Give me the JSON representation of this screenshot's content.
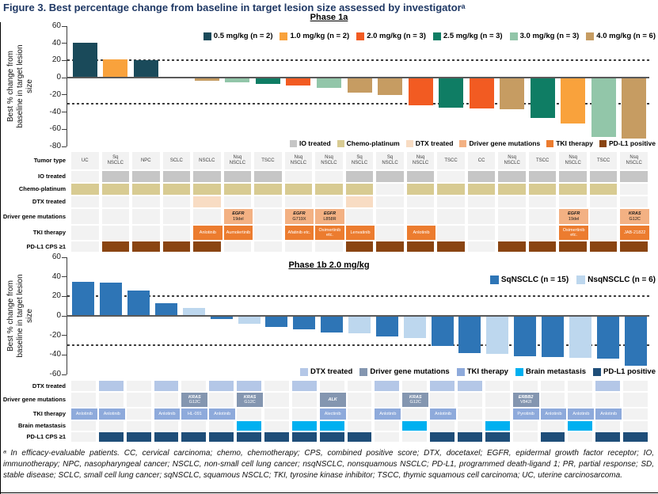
{
  "figure": {
    "title": "Figure 3. Best percentage change from baseline in target lesion size assessed by investigatorᵃ",
    "title_color": "#1f3864",
    "ylabel": "Best % change from\nbaseline in target lesion\nsize",
    "footnote": "ᵃ In efficacy-evaluable patients. CC, cervical carcinoma; chemo, chemotherapy; CPS, combined positive score; DTX, docetaxel; EGFR, epidermal growth factor receptor; IO, immunotherapy; NPC, nasopharyngeal cancer; NSCLC, non-small cell lung cancer; nsqNSCLC, nonsquamous NSCLC; PD-L1, programmed death-ligand 1; PR, partial response; SD, stable disease; SCLC, small cell lung cancer; sqNSCLC, squamous NSCLC; TKI, tyrosine kinase inhibitor; TSCC, thymic squamous cell carcinoma; UC, uterine carcinosarcoma."
  },
  "chart_data": [
    {
      "id": "phase-1a",
      "type": "bar",
      "title": "Phase 1a",
      "ylabel": "Best % change from baseline in target lesion size",
      "ylim": [
        -80,
        60
      ],
      "yticks": [
        60,
        40,
        20,
        0,
        -20,
        -40,
        -60,
        -80
      ],
      "ref_lines": [
        20,
        -30
      ],
      "grid": false,
      "legend_position": "top-inside",
      "series_legend": [
        {
          "key": "0.5",
          "label": "0.5 mg/kg (n = 2)",
          "color": "#1a4a5a"
        },
        {
          "key": "1.0",
          "label": "1.0 mg/kg (n = 2)",
          "color": "#f9a23c"
        },
        {
          "key": "2.0",
          "label": "2.0 mg/kg (n = 3)",
          "color": "#f25b22"
        },
        {
          "key": "2.5",
          "label": "2.5 mg/kg (n = 3)",
          "color": "#0f7d64"
        },
        {
          "key": "3.0",
          "label": "3.0 mg/kg (n = 3)",
          "color": "#92c6a9"
        },
        {
          "key": "4.0",
          "label": "4.0 mg/kg (n = 6)",
          "color": "#c69c62"
        }
      ],
      "values": [
        41,
        21,
        20,
        0,
        -4,
        -5,
        -7,
        -9,
        -12,
        -17,
        -20,
        -32,
        -35,
        -36,
        -37,
        -47,
        -53,
        -69,
        -71
      ],
      "series_key": [
        "0.5",
        "1.0",
        "0.5",
        "4.0",
        "4.0",
        "3.0",
        "2.5",
        "2.0",
        "3.0",
        "4.0",
        "4.0",
        "2.0",
        "2.5",
        "2.0",
        "4.0",
        "2.5",
        "1.0",
        "3.0",
        "4.0"
      ],
      "annotation_grid": {
        "n_cols": 19,
        "row_labels": [
          "Tumor type",
          "IO treated",
          "Chemo-platinum",
          "DTX treated",
          "Driver gene mutations",
          "TKI therapy",
          "PD-L1 CPS ≥1"
        ],
        "tumor_types": [
          "UC",
          "Sq\nNSCLC",
          "NPC",
          "SCLC",
          "NSCLC",
          "Nsq\nNSCLC",
          "TSCC",
          "Nsq\nNSCLC",
          "Nsq\nNSCLC",
          "Sq\nNSCLC",
          "Sq\nNSCLC",
          "Nsq\nNSCLC",
          "TSCC",
          "CC",
          "Nsq\nNSCLC",
          "TSCC",
          "Nsq\nNSCLC",
          "TSCC",
          "Nsq\nNSCLC"
        ],
        "io_cols": [
          2,
          3,
          4,
          5,
          6,
          7,
          10,
          11,
          12,
          14,
          15,
          16,
          17,
          18,
          19
        ],
        "chemo_cols": [
          1,
          2,
          3,
          4,
          5,
          6,
          7,
          8,
          9,
          10,
          12,
          13,
          14,
          15,
          16,
          17,
          18
        ],
        "dtx_cols": [
          5,
          10
        ],
        "driver_cells": {
          "6": "EGFR|19del",
          "8": "EGFR|G719X",
          "9": "EGFR|L858R",
          "17": "EGFR|19del",
          "19": "KRAS|G12C"
        },
        "tki_cells": {
          "5": "Anlotinib",
          "6": "Aumolertinib",
          "8": "Afatinib etc.",
          "9": "Osimertinib etc.",
          "10": "Lenvatinib",
          "12": "Anlotinib",
          "17": "Osimertinib etc.",
          "19": "JAB-21822"
        },
        "pdl1_cols": [
          2,
          3,
          4,
          5,
          10,
          11,
          12,
          13,
          15,
          16,
          17,
          18,
          19
        ],
        "colors": {
          "empty": "#f2f2f2",
          "io": "#c6c6c6",
          "chemo": "#d8cb92",
          "dtx": "#f8dcc3",
          "driver": "#f3b183",
          "tki": "#ec7c2f",
          "pdl1": "#8a4512"
        },
        "legend": [
          {
            "label": "IO treated",
            "color": "#c6c6c6"
          },
          {
            "label": "Chemo-platinum",
            "color": "#d8cb92"
          },
          {
            "label": "DTX treated",
            "color": "#f8dcc3"
          },
          {
            "label": "Driver gene mutations",
            "color": "#f3b183"
          },
          {
            "label": "TKI therapy",
            "color": "#ec7c2f"
          },
          {
            "label": "PD-L1 positive",
            "color": "#8a4512"
          }
        ]
      }
    },
    {
      "id": "phase-1b",
      "type": "bar",
      "title": "Phase 1b 2.0 mg/kg",
      "ylabel": "Best % change from baseline in target lesion size",
      "ylim": [
        -60,
        60
      ],
      "yticks": [
        60,
        40,
        20,
        0,
        -20,
        -40,
        -60
      ],
      "ref_lines": [
        20,
        -30
      ],
      "grid": false,
      "legend_position": "top-inside",
      "series_legend": [
        {
          "key": "sq",
          "label": "SqNSCLC (n = 15)",
          "color": "#2e75b6"
        },
        {
          "key": "nsq",
          "label": "NsqNSCLC (n = 6)",
          "color": "#bdd7ee"
        }
      ],
      "values": [
        35,
        34,
        26,
        13,
        8,
        -3,
        -8,
        -11,
        -14,
        -17,
        -18,
        -21,
        -23,
        -31,
        -38,
        -39,
        -41,
        -42,
        -43,
        -44,
        -51
      ],
      "series_key": [
        "sq",
        "sq",
        "sq",
        "sq",
        "nsq",
        "sq",
        "nsq",
        "sq",
        "sq",
        "sq",
        "nsq",
        "sq",
        "nsq",
        "sq",
        "sq",
        "nsq",
        "sq",
        "sq",
        "nsq",
        "sq",
        "sq"
      ],
      "annotation_grid": {
        "n_cols": 21,
        "row_labels": [
          "DTX treated",
          "Driver gene mutations",
          "TKI therapy",
          "Brain metastasis",
          "PD-L1 CPS ≥1"
        ],
        "dtx_cols": [
          2,
          4,
          6,
          7,
          9,
          12,
          14,
          15,
          20
        ],
        "driver_cells": {
          "5": "KRAS|G12C",
          "7": "KRAS|G12C",
          "10": "ALK",
          "13": "KRAS|G12C",
          "17": "ERBB2|V842I"
        },
        "tki_cells": {
          "1": "Anlotinib",
          "2": "Anlotinib",
          "4": "Anlotinib",
          "5": "HL-091",
          "6": "Anlotinib",
          "10": "Alectinib",
          "12": "Anlotinib",
          "14": "Anlotinib",
          "17": "Pyrotinib",
          "18": "Anlotinib",
          "19": "Anlotinib",
          "20": "Anlotinib"
        },
        "brain_cols": [
          7,
          9,
          10,
          13,
          16,
          19
        ],
        "pdl1_cols": [
          2,
          3,
          4,
          5,
          6,
          7,
          8,
          9,
          10,
          11,
          14,
          15,
          16,
          18,
          20,
          21
        ],
        "colors": {
          "empty": "#f2f2f2",
          "dtx": "#b4c7e7",
          "driver": "#8496b0",
          "tki": "#8eaadb",
          "brain": "#00b0f0",
          "pdl1": "#1f4e79"
        },
        "legend": [
          {
            "label": "DTX treated",
            "color": "#b4c7e7"
          },
          {
            "label": "Driver gene mutations",
            "color": "#8496b0"
          },
          {
            "label": "TKI therapy",
            "color": "#8eaadb"
          },
          {
            "label": "Brain metastasis",
            "color": "#00b0f0"
          },
          {
            "label": "PD-L1 positive",
            "color": "#1f4e79"
          }
        ]
      }
    }
  ]
}
